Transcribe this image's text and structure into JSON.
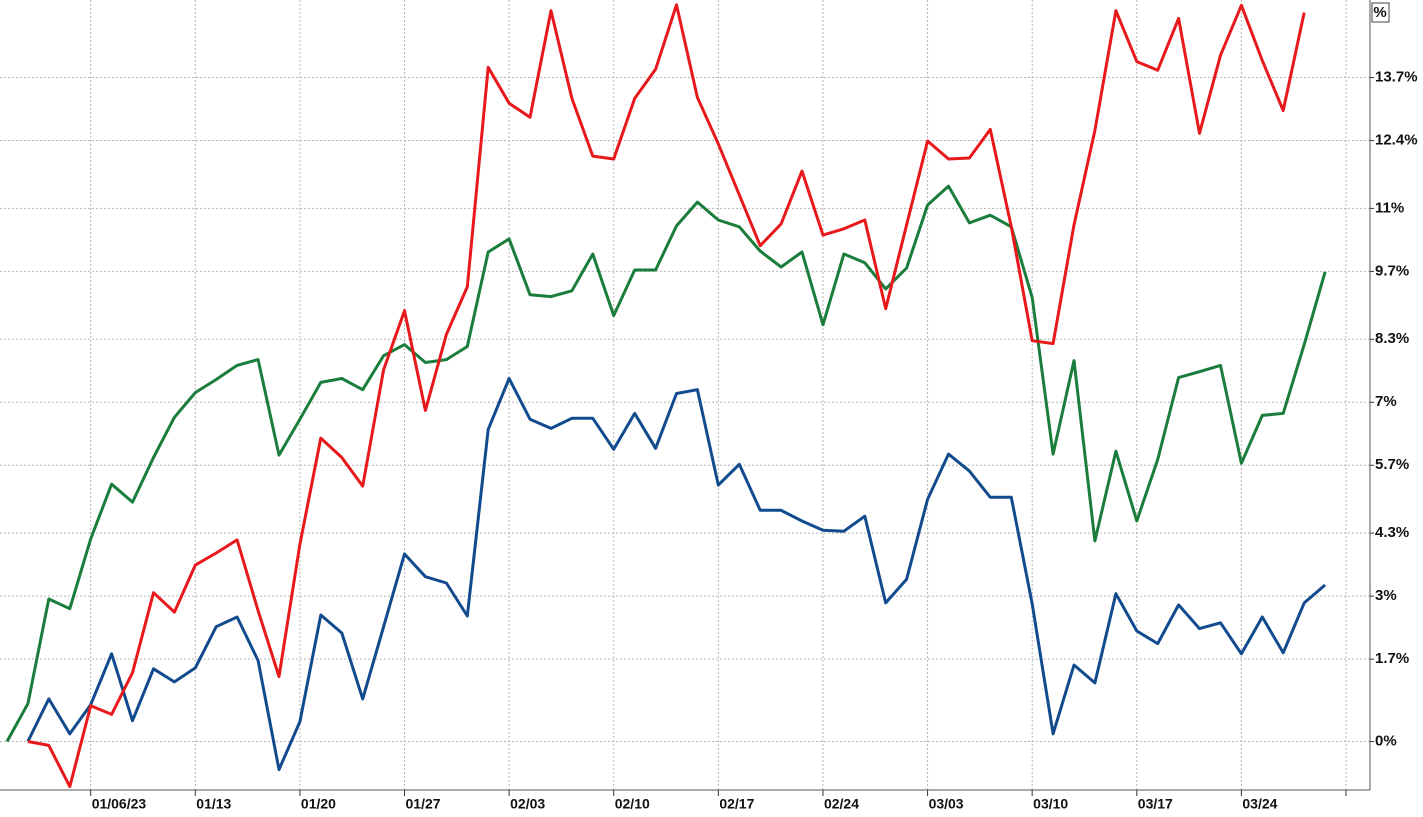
{
  "chart_data": {
    "type": "line",
    "y_axis_label": "%",
    "categories": [
      null,
      null,
      null,
      null,
      "01/06/23",
      null,
      null,
      null,
      null,
      "01/13",
      null,
      null,
      null,
      null,
      "01/20",
      null,
      null,
      null,
      null,
      "01/27",
      null,
      null,
      null,
      null,
      "02/03",
      null,
      null,
      null,
      null,
      "02/10",
      null,
      null,
      null,
      null,
      "02/17",
      null,
      null,
      null,
      null,
      "02/24",
      null,
      null,
      null,
      null,
      "03/03",
      null,
      null,
      null,
      null,
      "03/10",
      null,
      null,
      null,
      null,
      "03/17",
      null,
      null,
      null,
      null,
      "03/24",
      null,
      null,
      null,
      null,
      null
    ],
    "series": [
      {
        "color": "#1a7d3c",
        "values": [
          0,
          0.78,
          2.94,
          2.74,
          4.18,
          5.31,
          4.94,
          5.86,
          6.69,
          7.2,
          7.47,
          7.76,
          7.88,
          5.91,
          6.65,
          7.41,
          7.49,
          7.26,
          7.96,
          8.19,
          7.82,
          7.88,
          8.15,
          10.1,
          10.37,
          9.22,
          9.18,
          9.3,
          10.06,
          8.79,
          9.73,
          9.73,
          10.64,
          11.13,
          10.76,
          10.62,
          10.12,
          9.79,
          10.1,
          8.6,
          10.06,
          9.88,
          9.34,
          9.77,
          11.07,
          11.46,
          10.7,
          10.86,
          10.62,
          9.16,
          5.93,
          7.86,
          4.14,
          5.99,
          4.55,
          5.82,
          7.51,
          7.63,
          7.76,
          5.74,
          6.73,
          6.77,
          8.19,
          9.69,
          null
        ]
      },
      {
        "color": "#124a8e",
        "values": [
          null,
          0,
          0.88,
          0.16,
          0.76,
          1.81,
          0.43,
          1.5,
          1.23,
          1.52,
          2.37,
          2.57,
          1.67,
          -0.58,
          0.41,
          2.61,
          2.24,
          0.88,
          2.37,
          3.87,
          3.4,
          3.27,
          2.59,
          6.44,
          7.49,
          6.65,
          6.46,
          6.67,
          6.67,
          6.03,
          6.77,
          6.05,
          7.18,
          7.26,
          5.29,
          5.72,
          4.77,
          4.77,
          4.55,
          4.36,
          4.34,
          4.65,
          2.86,
          3.35,
          5.0,
          5.93,
          5.58,
          5.04,
          5.04,
          2.84,
          0.16,
          1.58,
          1.21,
          3.05,
          2.28,
          2.02,
          2.82,
          2.33,
          2.45,
          1.81,
          2.57,
          1.83,
          2.86,
          3.23,
          null
        ]
      },
      {
        "color": "#e8191c",
        "values": [
          null,
          0,
          -0.08,
          -0.93,
          0.74,
          0.56,
          1.42,
          3.07,
          2.67,
          3.64,
          3.89,
          4.16,
          2.7,
          1.34,
          4.07,
          6.26,
          5.86,
          5.27,
          7.67,
          8.89,
          6.83,
          8.4,
          9.38,
          13.91,
          13.17,
          12.88,
          15.08,
          13.27,
          12.08,
          12.02,
          13.27,
          13.87,
          15.2,
          13.29,
          12.33,
          11.28,
          10.23,
          10.68,
          11.77,
          10.45,
          10.58,
          10.76,
          8.93,
          10.66,
          12.39,
          12.02,
          12.04,
          12.63,
          10.62,
          8.27,
          8.21,
          10.66,
          12.61,
          15.08,
          14.03,
          13.85,
          14.92,
          12.55,
          14.16,
          15.19,
          14.05,
          13.02,
          15.04,
          null,
          null
        ]
      }
    ],
    "ylim": [
      -1,
      15.3
    ],
    "yticks": [
      {
        "value": 0,
        "label": "0%"
      },
      {
        "value": 1.7,
        "label": "1.7%"
      },
      {
        "value": 3,
        "label": "3%"
      },
      {
        "value": 4.3,
        "label": "4.3%"
      },
      {
        "value": 5.7,
        "label": "5.7%"
      },
      {
        "value": 7,
        "label": "7%"
      },
      {
        "value": 8.3,
        "label": "8.3%"
      },
      {
        "value": 9.7,
        "label": "9.7%"
      },
      {
        "value": 11,
        "label": "11%"
      },
      {
        "value": 12.4,
        "label": "12.4%"
      },
      {
        "value": 13.7,
        "label": "13.7%"
      }
    ],
    "grid": true
  }
}
